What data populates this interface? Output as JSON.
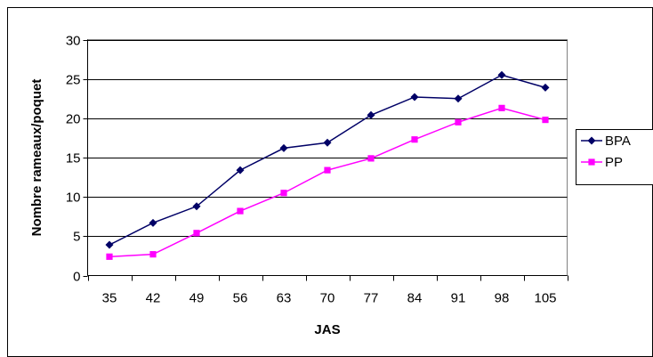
{
  "chart_data": {
    "type": "line",
    "title": "",
    "xlabel": "JAS",
    "ylabel": "Nombre rameaux/poquet",
    "categories": [
      "35",
      "42",
      "49",
      "56",
      "63",
      "70",
      "77",
      "84",
      "91",
      "98",
      "105"
    ],
    "ylim": [
      0,
      30
    ],
    "yticks": [
      0,
      5,
      10,
      15,
      20,
      25,
      30
    ],
    "grid": "horizontal",
    "legend_position": "right",
    "series": [
      {
        "name": "BPA",
        "color": "#000066",
        "marker": "diamond",
        "values": [
          3.9,
          6.7,
          8.8,
          13.4,
          16.2,
          16.9,
          20.4,
          22.7,
          22.5,
          25.5,
          23.9
        ]
      },
      {
        "name": "PP",
        "color": "#FF00FF",
        "marker": "square",
        "values": [
          2.4,
          2.7,
          5.4,
          8.2,
          10.5,
          13.4,
          14.9,
          17.3,
          19.5,
          21.3,
          19.8
        ]
      }
    ]
  }
}
